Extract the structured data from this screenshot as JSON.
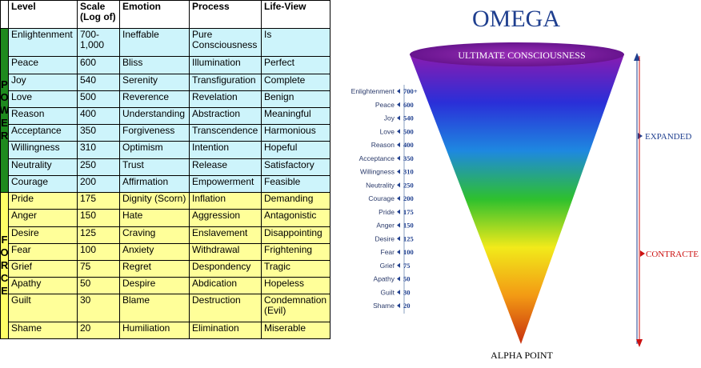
{
  "table": {
    "headers": {
      "level": "Level",
      "scale": "Scale (Log of)",
      "emotion": "Emotion",
      "process": "Process",
      "lifeview": "Life-View"
    },
    "power_letters": [
      "P",
      "O",
      "W",
      "E",
      "R"
    ],
    "force_letters": [
      "F",
      "O",
      "R",
      "C",
      "E"
    ],
    "rows": [
      {
        "level": "Enlightenment",
        "scale": "700-1,000",
        "emotion": "Ineffable",
        "process": "Pure Consciousness",
        "lifeview": "Is",
        "group": "power"
      },
      {
        "level": "Peace",
        "scale": "600",
        "emotion": "Bliss",
        "process": "Illumination",
        "lifeview": "Perfect",
        "group": "power"
      },
      {
        "level": "Joy",
        "scale": "540",
        "emotion": "Serenity",
        "process": "Transfiguration",
        "lifeview": "Complete",
        "group": "power"
      },
      {
        "level": "Love",
        "scale": "500",
        "emotion": "Reverence",
        "process": "Revelation",
        "lifeview": "Benign",
        "group": "power"
      },
      {
        "level": "Reason",
        "scale": "400",
        "emotion": "Understanding",
        "process": "Abstraction",
        "lifeview": "Meaningful",
        "group": "power"
      },
      {
        "level": "Acceptance",
        "scale": "350",
        "emotion": "Forgiveness",
        "process": "Transcendence",
        "lifeview": "Harmonious",
        "group": "power"
      },
      {
        "level": "Willingness",
        "scale": "310",
        "emotion": "Optimism",
        "process": "Intention",
        "lifeview": "Hopeful",
        "group": "power"
      },
      {
        "level": "Neutrality",
        "scale": "250",
        "emotion": "Trust",
        "process": "Release",
        "lifeview": "Satisfactory",
        "group": "power"
      },
      {
        "level": "Courage",
        "scale": "200",
        "emotion": "Affirmation",
        "process": "Empowerment",
        "lifeview": "Feasible",
        "group": "power"
      },
      {
        "level": "Pride",
        "scale": "175",
        "emotion": "Dignity (Scorn)",
        "process": "Inflation",
        "lifeview": "Demanding",
        "group": "force"
      },
      {
        "level": "Anger",
        "scale": "150",
        "emotion": "Hate",
        "process": "Aggression",
        "lifeview": "Antagonistic",
        "group": "force"
      },
      {
        "level": "Desire",
        "scale": "125",
        "emotion": "Craving",
        "process": "Enslavement",
        "lifeview": "Disappointing",
        "group": "force"
      },
      {
        "level": "Fear",
        "scale": "100",
        "emotion": "Anxiety",
        "process": "Withdrawal",
        "lifeview": "Frightening",
        "group": "force"
      },
      {
        "level": "Grief",
        "scale": "75",
        "emotion": "Regret",
        "process": "Despondency",
        "lifeview": "Tragic",
        "group": "force"
      },
      {
        "level": "Apathy",
        "scale": "50",
        "emotion": "Despire",
        "process": "Abdication",
        "lifeview": "Hopeless",
        "group": "force"
      },
      {
        "level": "Guilt",
        "scale": "30",
        "emotion": "Blame",
        "process": "Destruction",
        "lifeview": "Condemnation (Evil)",
        "group": "force"
      },
      {
        "level": "Shame",
        "scale": "20",
        "emotion": "Humiliation",
        "process": "Elimination",
        "lifeview": "Miserable",
        "group": "force"
      }
    ]
  },
  "diagram": {
    "title": "OMEGA",
    "top_label": "ULTIMATE CONSCIOUSNESS",
    "bottom_label": "ALPHA POINT",
    "expanded_label": "EXPANDED",
    "contracted_label": "CONTRACTE",
    "expanded_color": "#1f3f8f",
    "contracted_color": "#cc1111",
    "cone_colors": [
      "#8a1bb0",
      "#2a2fd8",
      "#1e88e0",
      "#2ec02e",
      "#f2ea1a",
      "#f39a14",
      "#c8300e"
    ],
    "scale_labels": [
      {
        "name": "Enlightenment",
        "value": "700+"
      },
      {
        "name": "Peace",
        "value": "600"
      },
      {
        "name": "Joy",
        "value": "540"
      },
      {
        "name": "Love",
        "value": "500"
      },
      {
        "name": "Reason",
        "value": "400"
      },
      {
        "name": "Acceptance",
        "value": "350"
      },
      {
        "name": "Willingness",
        "value": "310"
      },
      {
        "name": "Neutrality",
        "value": "250"
      },
      {
        "name": "Courage",
        "value": "200"
      },
      {
        "name": "Pride",
        "value": "175"
      },
      {
        "name": "Anger",
        "value": "150"
      },
      {
        "name": "Desire",
        "value": "125"
      },
      {
        "name": "Fear",
        "value": "100"
      },
      {
        "name": "Grief",
        "value": "75"
      },
      {
        "name": "Apathy",
        "value": "50"
      },
      {
        "name": "Guilt",
        "value": "30"
      },
      {
        "name": "Shame",
        "value": "20"
      }
    ]
  }
}
